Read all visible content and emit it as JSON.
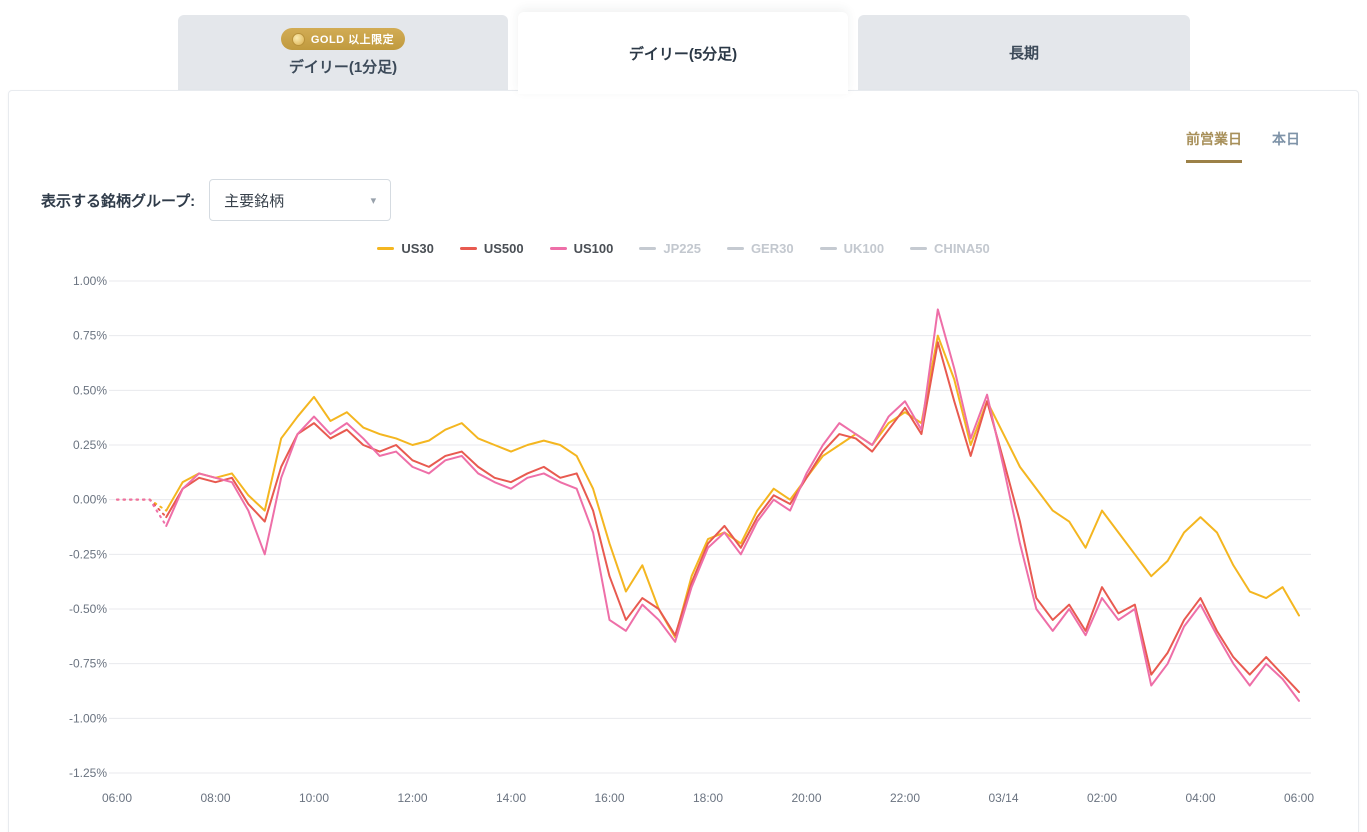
{
  "tabs": [
    {
      "badge": "GOLD 以上限定",
      "label": "デイリー(1分足)",
      "active": false
    },
    {
      "label": "デイリー(5分足)",
      "active": true
    },
    {
      "label": "長期",
      "active": false
    }
  ],
  "period_toggle": {
    "previous_day": "前営業日",
    "today": "本日",
    "active": "previous_day"
  },
  "symbol_group": {
    "label": "表示する銘柄グループ:",
    "selected": "主要銘柄"
  },
  "legend": {
    "items": [
      {
        "label": "US30",
        "color": "#F4B620",
        "active": true
      },
      {
        "label": "US500",
        "color": "#E85A50",
        "active": true
      },
      {
        "label": "US100",
        "color": "#EE6FA8",
        "active": true
      },
      {
        "label": "JP225",
        "color": "#C5CAD1",
        "active": false
      },
      {
        "label": "GER30",
        "color": "#C5CAD1",
        "active": false
      },
      {
        "label": "UK100",
        "color": "#C5CAD1",
        "active": false
      },
      {
        "label": "CHINA50",
        "color": "#C5CAD1",
        "active": false
      }
    ]
  },
  "chart_data": {
    "type": "line",
    "title": "",
    "xlabel": "",
    "ylabel": "",
    "grid": true,
    "grid_color": "#E8EAED",
    "tick_color": "#6A7380",
    "ylim": [
      -1.25,
      1.0
    ],
    "y_ticks": [
      1.0,
      0.75,
      0.5,
      0.25,
      0.0,
      -0.25,
      -0.5,
      -0.75,
      -1.0,
      -1.25
    ],
    "y_tick_labels": [
      "1.00%",
      "0.75%",
      "0.50%",
      "0.25%",
      "0.00%",
      "-0.25%",
      "-0.50%",
      "-0.75%",
      "-1.00%",
      "-1.25%"
    ],
    "x_tick_labels": [
      "06:00",
      "08:00",
      "10:00",
      "12:00",
      "14:00",
      "16:00",
      "18:00",
      "20:00",
      "22:00",
      "03/14",
      "02:00",
      "04:00",
      "06:00"
    ],
    "dotted_until_index": 3,
    "inactive_series": [
      "JP225",
      "GER30",
      "UK100",
      "CHINA50"
    ],
    "series": [
      {
        "name": "US30",
        "color": "#F4B620",
        "values": [
          0,
          0,
          0,
          -0.05,
          0.08,
          0.12,
          0.1,
          0.12,
          0.02,
          -0.05,
          0.28,
          0.38,
          0.47,
          0.36,
          0.4,
          0.33,
          0.3,
          0.28,
          0.25,
          0.27,
          0.32,
          0.35,
          0.28,
          0.25,
          0.22,
          0.25,
          0.27,
          0.25,
          0.2,
          0.05,
          -0.2,
          -0.42,
          -0.3,
          -0.5,
          -0.63,
          -0.35,
          -0.18,
          -0.15,
          -0.2,
          -0.05,
          0.05,
          0.0,
          0.1,
          0.2,
          0.25,
          0.3,
          0.25,
          0.35,
          0.4,
          0.35,
          0.75,
          0.55,
          0.25,
          0.45,
          0.3,
          0.15,
          0.05,
          -0.05,
          -0.1,
          -0.22,
          -0.05,
          -0.15,
          -0.25,
          -0.35,
          -0.28,
          -0.15,
          -0.08,
          -0.15,
          -0.3,
          -0.42,
          -0.45,
          -0.4,
          -0.53
        ]
      },
      {
        "name": "US500",
        "color": "#E85A50",
        "values": [
          0,
          0,
          0,
          -0.08,
          0.05,
          0.1,
          0.08,
          0.1,
          -0.02,
          -0.1,
          0.15,
          0.3,
          0.35,
          0.28,
          0.32,
          0.25,
          0.22,
          0.25,
          0.18,
          0.15,
          0.2,
          0.22,
          0.15,
          0.1,
          0.08,
          0.12,
          0.15,
          0.1,
          0.12,
          -0.05,
          -0.35,
          -0.55,
          -0.45,
          -0.5,
          -0.62,
          -0.38,
          -0.2,
          -0.12,
          -0.22,
          -0.08,
          0.02,
          -0.02,
          0.1,
          0.22,
          0.3,
          0.28,
          0.22,
          0.32,
          0.42,
          0.3,
          0.72,
          0.45,
          0.2,
          0.45,
          0.18,
          -0.1,
          -0.45,
          -0.55,
          -0.48,
          -0.6,
          -0.4,
          -0.52,
          -0.48,
          -0.8,
          -0.7,
          -0.55,
          -0.45,
          -0.6,
          -0.72,
          -0.8,
          -0.72,
          -0.8,
          -0.88
        ]
      },
      {
        "name": "US100",
        "color": "#EE6FA8",
        "values": [
          0,
          0,
          0,
          -0.12,
          0.05,
          0.12,
          0.1,
          0.08,
          -0.05,
          -0.25,
          0.1,
          0.3,
          0.38,
          0.3,
          0.35,
          0.28,
          0.2,
          0.22,
          0.15,
          0.12,
          0.18,
          0.2,
          0.12,
          0.08,
          0.05,
          0.1,
          0.12,
          0.08,
          0.05,
          -0.15,
          -0.55,
          -0.6,
          -0.48,
          -0.55,
          -0.65,
          -0.4,
          -0.22,
          -0.15,
          -0.25,
          -0.1,
          0.0,
          -0.05,
          0.12,
          0.25,
          0.35,
          0.3,
          0.25,
          0.38,
          0.45,
          0.32,
          0.87,
          0.6,
          0.28,
          0.48,
          0.15,
          -0.2,
          -0.5,
          -0.6,
          -0.5,
          -0.62,
          -0.45,
          -0.55,
          -0.5,
          -0.85,
          -0.75,
          -0.58,
          -0.48,
          -0.62,
          -0.75,
          -0.85,
          -0.75,
          -0.82,
          -0.92
        ]
      }
    ]
  }
}
